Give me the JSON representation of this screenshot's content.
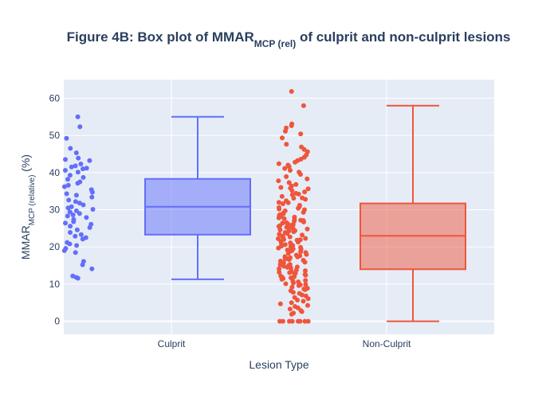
{
  "chart_data": {
    "type": "box",
    "title": {
      "main": "Figure 4B: Box plot of MMAR",
      "sub": "MCP (rel)",
      "rest": " of culprit and non-culprit lesions"
    },
    "xlabel": "Lesion Type",
    "ylabel": {
      "main": "MMAR",
      "sub": "MCP (relative)",
      "rest": " (%)"
    },
    "ylim": [
      -3.5,
      65
    ],
    "yticks": [
      0,
      10,
      20,
      30,
      40,
      50,
      60
    ],
    "grid": true,
    "categories": [
      "Culprit",
      "Non-Culprit"
    ],
    "series": [
      {
        "category": "Culprit",
        "color": "#636efa",
        "fill": "rgba(99,110,250,0.5)",
        "box": {
          "lowerfence": 11.3,
          "q1": 23.3,
          "median": 30.8,
          "q3": 38.3,
          "upperfence": 55
        },
        "points": [
          55,
          52.3,
          49.2,
          46.5,
          45.3,
          43.9,
          43.5,
          43.2,
          42.3,
          41.8,
          41.5,
          41.2,
          41,
          40.6,
          40.1,
          39.3,
          38.7,
          38.2,
          37.5,
          37.1,
          36.6,
          36.2,
          35.4,
          34.7,
          34.3,
          33.9,
          33.4,
          32.6,
          32.2,
          31.8,
          31.3,
          30.8,
          30.5,
          30.1,
          29.7,
          29.4,
          29,
          28.6,
          28.3,
          27.9,
          27.4,
          26.8,
          26.4,
          26.1,
          25.6,
          25.2,
          24.6,
          23.9,
          23.3,
          22.9,
          22.5,
          22.1,
          21.2,
          20.8,
          20.4,
          19.6,
          19,
          18.5,
          16.1,
          15.2,
          14.1,
          12.2,
          11.8,
          11.6
        ]
      },
      {
        "category": "Non-Culprit",
        "color": "#ef553b",
        "fill": "rgba(239,85,59,0.5)",
        "box": {
          "lowerfence": 0,
          "q1": 14,
          "median": 23,
          "q3": 31.7,
          "upperfence": 58
        },
        "points": [
          61.8,
          58,
          53.1,
          52.6,
          52,
          51.1,
          50.4,
          49.3,
          47.6,
          46.9,
          46.2,
          45.6,
          44.7,
          44.1,
          43.6,
          43.2,
          42.8,
          42.4,
          42,
          41.6,
          41.1,
          40.6,
          40.1,
          39.5,
          38.9,
          38.3,
          37.8,
          37.3,
          36.8,
          36.4,
          36,
          35.6,
          35.2,
          34.8,
          34.4,
          34,
          33.6,
          33.2,
          32.8,
          32.4,
          32,
          31.6,
          31.2,
          30.8,
          30.4,
          30,
          29.7,
          29.3,
          28.9,
          28.5,
          28.2,
          27.8,
          27.4,
          27.1,
          26.7,
          26.4,
          26,
          25.7,
          25.3,
          25,
          24.6,
          24.3,
          23.9,
          23.6,
          23.2,
          22.9,
          22.5,
          22.2,
          21.8,
          21.5,
          21.1,
          20.8,
          20.4,
          20.1,
          19.7,
          19.4,
          19,
          18.7,
          18.3,
          18,
          17.6,
          17.3,
          16.9,
          16.6,
          16.2,
          15.9,
          15.5,
          15.2,
          14.8,
          14.5,
          14.1,
          13.8,
          13.4,
          13.1,
          12.7,
          12.4,
          12,
          11.7,
          11.3,
          11,
          10.6,
          10.3,
          9.9,
          9.6,
          9.2,
          8.9,
          8.5,
          8.2,
          7.8,
          7.5,
          7.1,
          6.8,
          6.4,
          6.1,
          5.7,
          5.4,
          5,
          4.7,
          4.3,
          4,
          3.6,
          3.3,
          2.9,
          2.6,
          2.2,
          1.9,
          0,
          0,
          0,
          0,
          0,
          0,
          0,
          0,
          34.2,
          29.1,
          27.6,
          26.9,
          26.2,
          25.5,
          24.8,
          24.1,
          23.4,
          22.7,
          22,
          21.3,
          20.6,
          19.9,
          19.2,
          18.5,
          17.8,
          17.1,
          16.4,
          15.7,
          15,
          14.3,
          13.6,
          12.9,
          12.2,
          11.5,
          10.8,
          10.1,
          35.8,
          33.1,
          31.9,
          30.6,
          28.7,
          27.2,
          25.9,
          24.4,
          22.3,
          20.2,
          18.9,
          17.4,
          15.3,
          13.2,
          11.9,
          9.8,
          8.7,
          30.2,
          28,
          26.5,
          25.1,
          23.8,
          21.9,
          19.5,
          16.8,
          14.6,
          12.6
        ]
      }
    ]
  }
}
